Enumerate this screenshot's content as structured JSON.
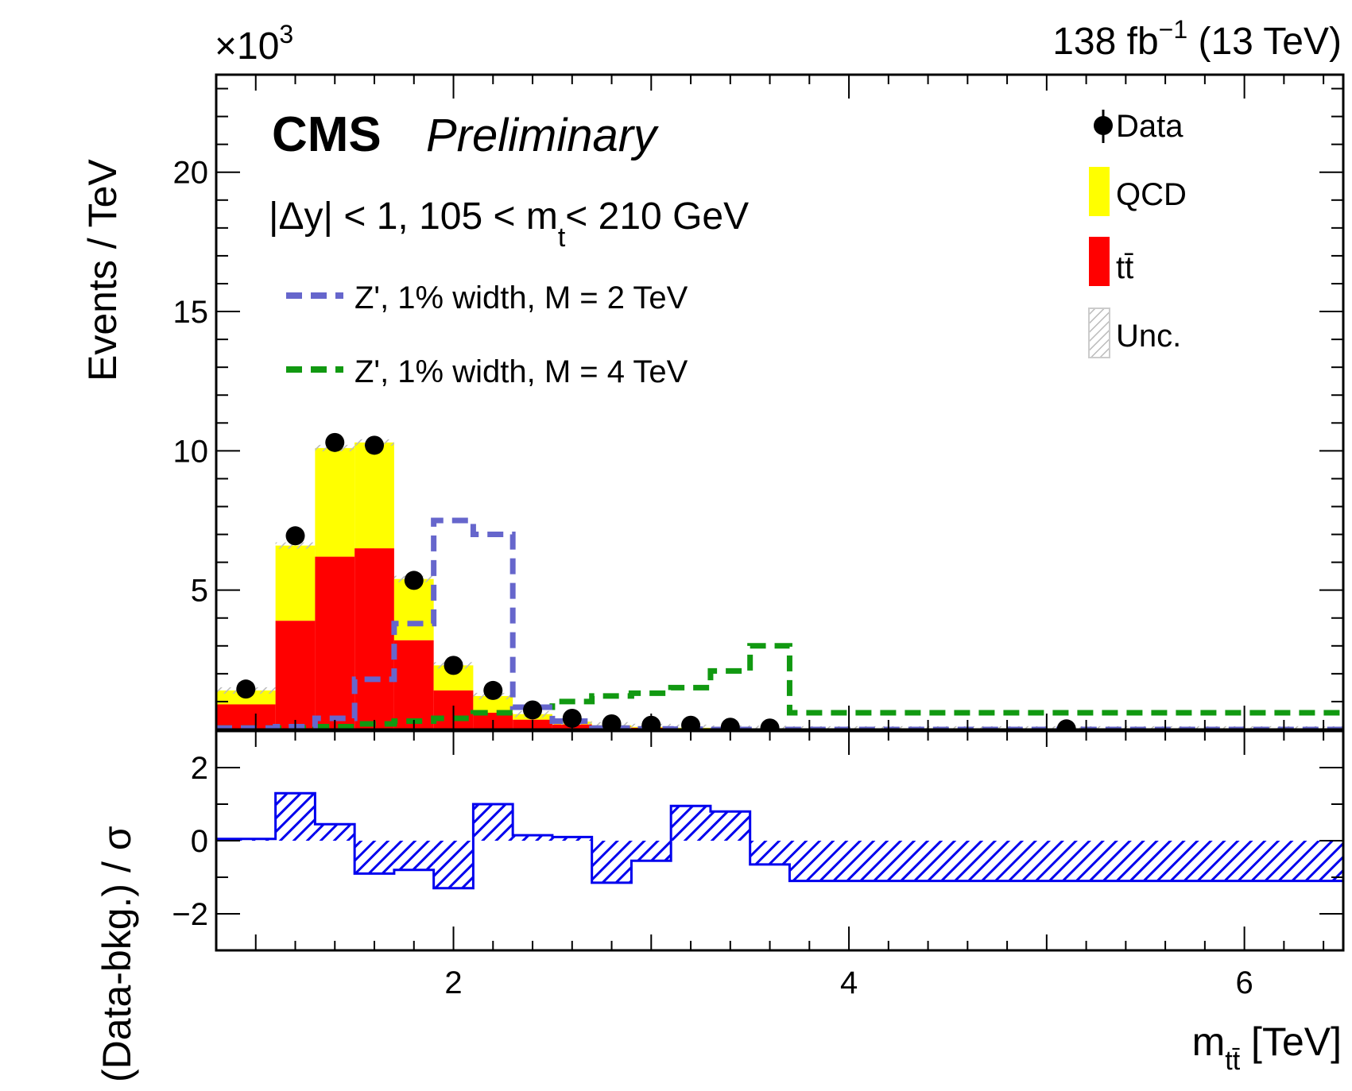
{
  "header": {
    "lumi": "138 fb",
    "lumi_exp": "−1",
    "energy": " (13 TeV)",
    "cms": "CMS",
    "preliminary": "Preliminary",
    "multiplier_base": "×10",
    "multiplier_exp": "3"
  },
  "selection": {
    "part1": "|Δy| < 1, 105 < m",
    "sub": "t",
    "part2": "< 210 GeV"
  },
  "legend_left": [
    {
      "label": "Z', 1% width, M = 2 TeV",
      "color": "#6666cc"
    },
    {
      "label": "Z', 1% width, M = 4 TeV",
      "color": "#119911"
    }
  ],
  "legend_right": [
    {
      "label": "Data",
      "kind": "point"
    },
    {
      "label": "QCD",
      "kind": "fill",
      "color": "#ffff00"
    },
    {
      "label": "tt̄",
      "kind": "fill",
      "color": "#ff0000"
    },
    {
      "label": "Unc.",
      "kind": "hatch",
      "color": "#bbbbbb"
    }
  ],
  "axes": {
    "ylabel_top": "Events / TeV",
    "ylabel_bottom": "(Data-bkg.) / σ",
    "xlabel_main": "m",
    "xlabel_sub": "tt̄",
    "xlabel_unit": " [TeV]"
  },
  "chart_data": {
    "type": "bar",
    "x_unit": "TeV",
    "xlim": [
      0.8,
      6.5
    ],
    "x_ticks": [
      2,
      4,
      6
    ],
    "top": {
      "y_unit": "10^3 events / TeV",
      "ylim": [
        0,
        23.5
      ],
      "y_ticks": [
        5,
        10,
        15,
        20
      ],
      "bin_edges": [
        0.8,
        1.1,
        1.3,
        1.5,
        1.7,
        1.9,
        2.1,
        2.3,
        2.5,
        2.7,
        2.9,
        3.1,
        3.3,
        3.5,
        3.7,
        6.5
      ],
      "series": [
        {
          "name": "tt̄",
          "values": [
            0.9,
            3.9,
            6.2,
            6.5,
            3.2,
            1.4,
            0.6,
            0.35,
            0.18,
            0.1,
            0.06,
            0.04,
            0.02,
            0.01,
            0.003
          ]
        },
        {
          "name": "QCD",
          "values": [
            0.5,
            2.7,
            3.9,
            3.8,
            2.2,
            0.9,
            0.6,
            0.2,
            0.1,
            0.05,
            0.03,
            0.02,
            0.01,
            0.01,
            0.002
          ]
        },
        {
          "name": "Z', 1% width, M = 2 TeV",
          "values": [
            0.05,
            0.1,
            0.4,
            1.8,
            3.8,
            7.5,
            7.0,
            0.8,
            0.3,
            0.05,
            0.02,
            0.01,
            0.0,
            0.0,
            0.0
          ]
        },
        {
          "name": "Z', 1% width, M = 4 TeV",
          "values": [
            0.05,
            0.05,
            0.1,
            0.2,
            0.3,
            0.4,
            0.6,
            0.8,
            1.0,
            1.2,
            1.3,
            1.5,
            2.1,
            3.0,
            0.6
          ]
        }
      ],
      "data": {
        "x": [
          0.95,
          1.2,
          1.4,
          1.6,
          1.8,
          2.0,
          2.2,
          2.4,
          2.6,
          2.8,
          3.0,
          3.2,
          3.4,
          3.6,
          5.1
        ],
        "y": [
          1.45,
          6.95,
          10.3,
          10.2,
          5.35,
          2.3,
          1.4,
          0.7,
          0.4,
          0.2,
          0.15,
          0.15,
          0.08,
          0.05,
          0.02
        ]
      }
    },
    "ratio": {
      "ylim": [
        -3,
        3
      ],
      "y_ticks": [
        -2,
        0,
        2
      ],
      "values": [
        0.05,
        1.3,
        0.45,
        -0.9,
        -0.8,
        -1.3,
        1.0,
        0.15,
        0.1,
        -1.15,
        -0.55,
        0.95,
        0.8,
        -0.65,
        -1.1
      ]
    }
  }
}
